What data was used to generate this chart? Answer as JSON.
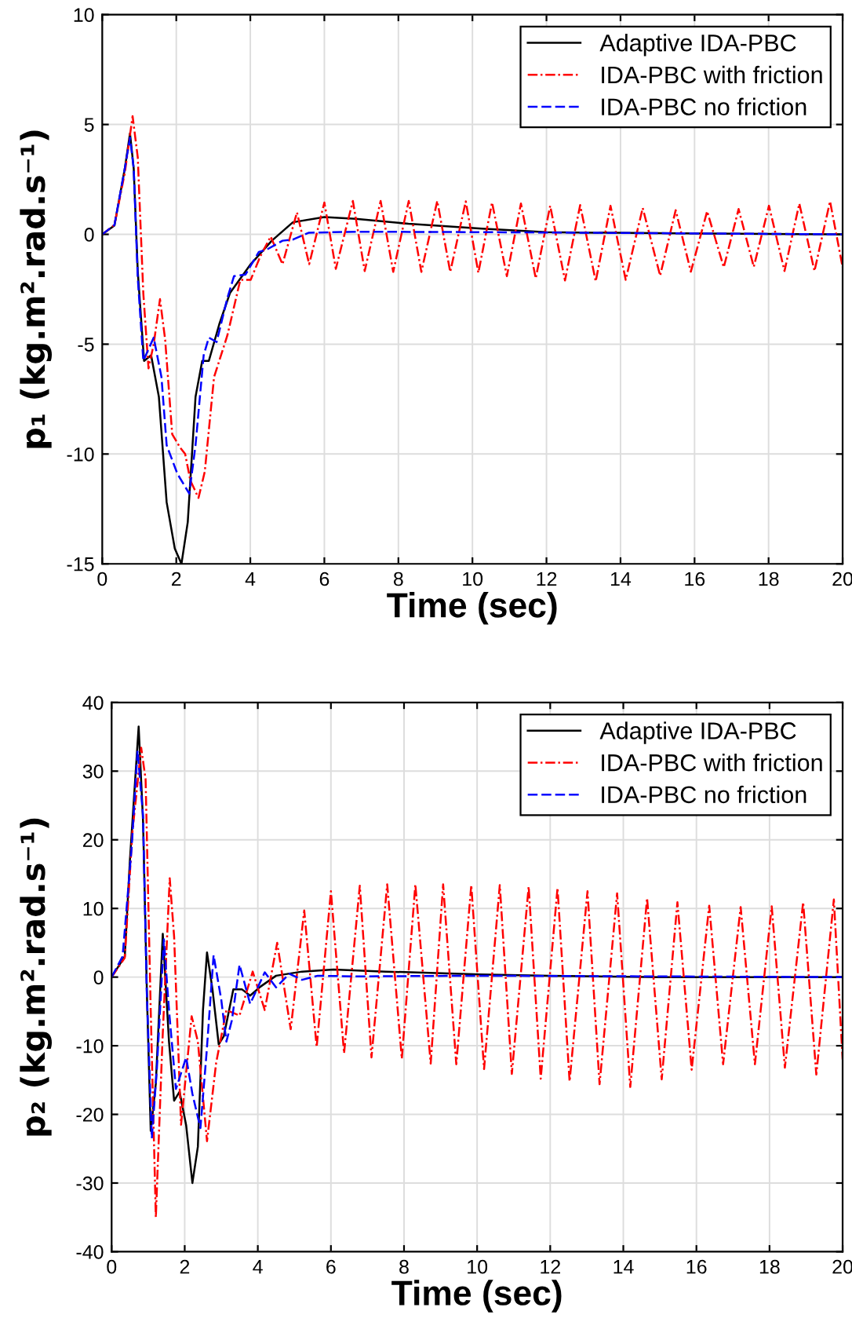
{
  "chart_data": [
    {
      "type": "line",
      "xlabel": "Time (sec)",
      "ylabel": "p₁ (kg.m².rad.s⁻¹)",
      "xlim": [
        0,
        20
      ],
      "ylim": [
        -15,
        10
      ],
      "xticks": [
        0,
        2,
        4,
        6,
        8,
        10,
        12,
        14,
        16,
        18,
        20
      ],
      "yticks": [
        -15,
        -10,
        -5,
        0,
        5,
        10
      ],
      "grid": true,
      "legend": "top right",
      "series": [
        {
          "name": "Adaptive IDA-PBC",
          "color": "#000000",
          "line_style": "solid",
          "x": [
            0,
            0.33,
            0.61,
            0.75,
            0.85,
            0.96,
            1.13,
            1.32,
            1.53,
            1.74,
            1.96,
            2.14,
            2.31,
            2.52,
            2.7,
            2.88,
            3.16,
            3.45,
            4.01,
            4.58,
            5.15,
            6.0,
            6.85,
            8.27,
            10.26,
            12,
            15,
            20
          ],
          "values": [
            0,
            0.4,
            3.0,
            4.6,
            3.0,
            -1.7,
            -5.76,
            -5.5,
            -7.4,
            -12.2,
            -14.3,
            -15.0,
            -13.1,
            -7.4,
            -5.76,
            -5.76,
            -4.1,
            -2.67,
            -1.36,
            -0.29,
            0.55,
            0.79,
            0.71,
            0.48,
            0.26,
            0.1,
            0.05,
            0
          ]
        },
        {
          "name": "IDA-PBC with friction",
          "color": "#ff0000",
          "line_style": "dashdot",
          "x": [
            0,
            0.33,
            0.61,
            0.82,
            0.96,
            1.11,
            1.25,
            1.39,
            1.56,
            1.7,
            1.89,
            2.1,
            2.24,
            2.38,
            2.6,
            2.77,
            3.02,
            3.38,
            3.73,
            4.01,
            4.27,
            4.55,
            4.87,
            5.26,
            5.59,
            6.0,
            6.31,
            6.77,
            7.09,
            7.52,
            7.86,
            8.28,
            8.62,
            9.05,
            9.4,
            9.82,
            10.16,
            10.53,
            10.93,
            11.31,
            11.71,
            12.1,
            12.5,
            12.91,
            13.33,
            13.73,
            14.14,
            14.6,
            15.07,
            15.49,
            15.9,
            16.34,
            16.79,
            17.19,
            17.6,
            18.01,
            18.43,
            18.83,
            19.24,
            19.66,
            20
          ],
          "values": [
            0,
            0.43,
            2.8,
            5.38,
            3.5,
            -2.7,
            -6.1,
            -5.0,
            -2.95,
            -4.8,
            -9.1,
            -9.7,
            -10.0,
            -11.2,
            -12.0,
            -10.8,
            -6.5,
            -4.6,
            -2.07,
            -2.07,
            -1.0,
            -0.1,
            -1.36,
            1.0,
            -1.36,
            1.45,
            -1.57,
            1.52,
            -1.67,
            1.52,
            -1.71,
            1.52,
            -1.71,
            1.52,
            -1.71,
            1.5,
            -1.75,
            1.45,
            -1.9,
            1.4,
            -2.0,
            1.3,
            -2.1,
            1.33,
            -2.14,
            1.3,
            -2.07,
            1.2,
            -1.88,
            1.1,
            -1.7,
            1.05,
            -1.5,
            1.15,
            -1.48,
            1.3,
            -1.67,
            1.4,
            -1.67,
            1.5,
            -1.5
          ]
        },
        {
          "name": "IDA-PBC no friction",
          "color": "#0000ff",
          "line_style": "dashed",
          "x": [
            0,
            0.33,
            0.61,
            0.75,
            0.85,
            0.96,
            1.11,
            1.39,
            1.6,
            1.74,
            2.03,
            2.35,
            2.52,
            2.74,
            2.88,
            3.09,
            3.38,
            3.56,
            3.87,
            4.23,
            4.44,
            4.87,
            5.15,
            5.57,
            6.85,
            10.26,
            20
          ],
          "values": [
            0,
            0.43,
            3.0,
            4.4,
            3.0,
            -2.0,
            -5.76,
            -4.7,
            -6.5,
            -9.6,
            -10.9,
            -11.8,
            -9.6,
            -5.5,
            -4.7,
            -4.9,
            -2.9,
            -1.9,
            -1.83,
            -0.8,
            -0.7,
            -0.29,
            -0.24,
            0.07,
            0.12,
            0.1,
            0
          ]
        }
      ]
    },
    {
      "type": "line",
      "xlabel": "Time (sec)",
      "ylabel": "p₂ (kg.m².rad.s⁻¹)",
      "xlim": [
        0,
        20
      ],
      "ylim": [
        -40,
        40
      ],
      "xticks": [
        0,
        2,
        4,
        6,
        8,
        10,
        12,
        14,
        16,
        18,
        20
      ],
      "yticks": [
        -40,
        -30,
        -20,
        -10,
        0,
        10,
        20,
        30,
        40
      ],
      "grid": true,
      "legend": "top right",
      "series": [
        {
          "name": "Adaptive IDA-PBC",
          "color": "#000000",
          "line_style": "solid",
          "x": [
            0,
            0.36,
            0.5,
            0.74,
            0.86,
            0.97,
            1.07,
            1.21,
            1.4,
            1.57,
            1.71,
            1.86,
            2.04,
            2.21,
            2.36,
            2.5,
            2.61,
            2.76,
            2.93,
            3.07,
            3.33,
            3.57,
            3.79,
            4.07,
            4.5,
            5.21,
            6.07,
            7.5,
            10.07,
            12,
            15,
            20
          ],
          "values": [
            0,
            3,
            17,
            36.5,
            22.7,
            -3.3,
            -22.4,
            -15.5,
            6.3,
            -9.4,
            -18,
            -16.7,
            -21.6,
            -30,
            -24.7,
            -4.8,
            3.6,
            -1.8,
            -9.8,
            -8.6,
            -1.8,
            -1.8,
            -2.7,
            -1.4,
            0.2,
            0.8,
            1.1,
            0.8,
            0.4,
            0.2,
            0,
            0
          ]
        },
        {
          "name": "IDA-PBC with friction",
          "color": "#ff0000",
          "line_style": "dashdot",
          "x": [
            0,
            0.36,
            0.57,
            0.81,
            0.93,
            1.07,
            1.21,
            1.39,
            1.59,
            1.71,
            1.9,
            2.19,
            2.36,
            2.61,
            2.86,
            3.14,
            3.5,
            3.86,
            4.19,
            4.53,
            4.9,
            5.27,
            5.61,
            6.0,
            6.36,
            6.79,
            7.11,
            7.54,
            7.94,
            8.31,
            8.73,
            9.07,
            9.43,
            9.84,
            10.19,
            10.62,
            10.95,
            11.41,
            11.74,
            12.2,
            12.53,
            13.02,
            13.35,
            13.83,
            14.19,
            14.65,
            15.05,
            15.48,
            15.87,
            16.35,
            16.73,
            17.21,
            17.6,
            18.06,
            18.42,
            18.92,
            19.28,
            19.76,
            20
          ],
          "values": [
            0,
            2.8,
            21.2,
            33.4,
            28.8,
            -4.8,
            -35,
            -9.4,
            14.4,
            5.9,
            -21.5,
            -5.7,
            -9.4,
            -23.9,
            -12.5,
            -4.8,
            -5.6,
            0.8,
            -4.8,
            5.0,
            -7.6,
            9.7,
            -10.2,
            12.5,
            -11.1,
            13.3,
            -11.7,
            13.5,
            -11.9,
            13.5,
            -12.6,
            13.5,
            -12.7,
            13.4,
            -13.4,
            13.4,
            -14.1,
            13.2,
            -14.8,
            13.0,
            -15.2,
            12.5,
            -15.6,
            12.2,
            -16.0,
            11.5,
            -14.9,
            10.9,
            -13.5,
            10.4,
            -12.7,
            10.2,
            -12.7,
            10.3,
            -13.2,
            10.9,
            -14.2,
            11.3,
            -12
          ]
        },
        {
          "name": "IDA-PBC no friction",
          "color": "#0000ff",
          "line_style": "dashed",
          "x": [
            0,
            0.3,
            0.55,
            0.71,
            0.86,
            0.96,
            1.1,
            1.24,
            1.43,
            1.57,
            1.76,
            2.04,
            2.21,
            2.43,
            2.6,
            2.79,
            3.0,
            3.14,
            3.29,
            3.5,
            3.79,
            4.19,
            4.5,
            4.86,
            5.21,
            5.64,
            6.64,
            10.07,
            20
          ],
          "values": [
            0,
            3,
            19,
            33,
            23.5,
            -1.8,
            -23.5,
            -13.2,
            5.5,
            -4.8,
            -16.3,
            -11.7,
            -17,
            -22,
            -10.9,
            3.2,
            -3.3,
            -9.4,
            -6.3,
            1.8,
            -3.9,
            0.7,
            -1.5,
            0.5,
            -0.4,
            0.2,
            0.1,
            0.2,
            0
          ]
        }
      ]
    }
  ]
}
